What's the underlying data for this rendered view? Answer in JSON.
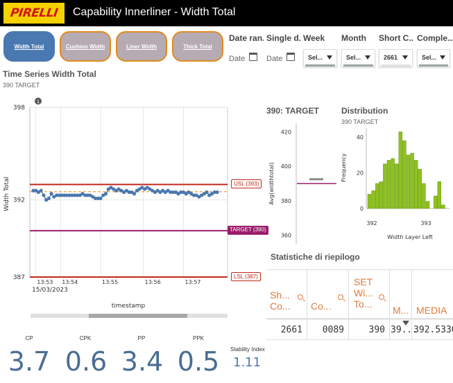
{
  "header": {
    "logo_text": "PIRELLI",
    "title": "Capability Innerliner - Width Total"
  },
  "nav": [
    {
      "label": "Width Total",
      "active": true
    },
    {
      "label": "Cushion Width",
      "active": false
    },
    {
      "label": "Liner Width",
      "active": false
    },
    {
      "label": "Thick Total",
      "active": false
    }
  ],
  "filters": {
    "date_range": {
      "label": "Date ran...",
      "placeholder": "Date"
    },
    "single_date": {
      "label": "Single d...",
      "placeholder": "Date"
    },
    "week": {
      "label": "Week",
      "value": "Sel..."
    },
    "month": {
      "label": "Month",
      "value": "Sel..."
    },
    "short_code": {
      "label": "Short C...",
      "value": "2661"
    },
    "complete": {
      "label": "Comple...",
      "value": "Sel..."
    }
  },
  "timeseries": {
    "title": "Time Series Width Total",
    "subtitle": "390 TARGET",
    "badge": "1",
    "ylabel": "Width Total",
    "xlabel": "timestamp",
    "date_label": "15/03/2023",
    "y_ticks": [
      "398",
      "392",
      "387"
    ],
    "x_ticks": [
      "13:53",
      "13:54",
      "13:55",
      "13:56",
      "13:57"
    ],
    "usl_label": "USL (393)",
    "target_label": "TARGET (390)",
    "lsl_label": "LSL (387)"
  },
  "chart_data": [
    {
      "type": "line",
      "title": "Time Series Width Total",
      "xlabel": "timestamp",
      "ylabel": "Width Total",
      "ylim": [
        387,
        398
      ],
      "usl": 393,
      "target": 390,
      "lsl": 387,
      "mean": 392.53,
      "x_ticks": [
        "13:53",
        "13:54",
        "13:55",
        "13:56",
        "13:57"
      ],
      "series": [
        {
          "values": [
            392.6,
            392.6,
            392.5,
            392.6,
            392.3,
            392.0,
            392.1,
            392.4,
            392.2,
            392.3,
            392.3,
            392.3,
            392.3,
            392.3,
            392.3,
            392.3,
            392.3,
            392.3,
            392.3,
            392.4,
            392.3,
            392.3,
            392.3,
            392.2,
            392.1,
            392.1,
            392.1,
            392.3,
            392.4,
            392.7,
            392.8,
            392.7,
            392.6,
            392.7,
            392.6,
            392.5,
            392.6,
            392.5,
            392.5,
            392.4,
            392.6,
            392.7,
            392.8,
            392.7,
            392.8,
            392.7,
            392.6,
            392.5,
            392.6,
            392.5,
            392.6,
            392.5,
            392.6,
            392.5,
            392.5,
            392.5,
            392.4,
            392.5,
            392.5,
            392.4,
            392.5,
            392.4,
            392.3,
            392.3,
            392.2,
            392.3,
            392.4,
            392.5,
            392.3,
            392.4,
            392.5,
            392.5
          ]
        }
      ]
    },
    {
      "type": "bar",
      "title": "390: TARGET",
      "ylabel": "Avg(widthtotal)",
      "ylim": [
        355,
        425
      ],
      "y_ticks": [
        420,
        400,
        380,
        360
      ],
      "avg": 392.5,
      "target": 390
    },
    {
      "type": "bar",
      "title": "Distribution",
      "subtitle": "390 TARGET",
      "xlabel": "Width Layer Left",
      "ylabel": "Frequency",
      "ylim": [
        0,
        45
      ],
      "y_ticks": [
        40,
        20,
        0
      ],
      "x_ticks": [
        "392",
        "393"
      ],
      "values": [
        8,
        10,
        14,
        15,
        25,
        27,
        28,
        25,
        43,
        38,
        30,
        31,
        27,
        22,
        14,
        4,
        0,
        7,
        15,
        2
      ]
    }
  ],
  "gauge": {
    "title": "390: TARGET",
    "ylabel": "Avg(widthtotal)",
    "y_ticks": [
      "420",
      "400",
      "380",
      "360"
    ]
  },
  "distribution": {
    "title": "Distribution",
    "subtitle": "390 TARGET",
    "ylabel": "Frequency",
    "xlabel": "Width Layer Left",
    "y_ticks": [
      "40",
      "20",
      "0"
    ],
    "x_ticks": [
      "392",
      "393"
    ]
  },
  "kpis": [
    {
      "label": "CP",
      "value": "3.7"
    },
    {
      "label": "CPK",
      "value": "0.6"
    },
    {
      "label": "PP",
      "value": "3.4"
    },
    {
      "label": "PPK",
      "value": "0.5"
    }
  ],
  "stability": {
    "label": "Stability Index",
    "value": "1.11"
  },
  "summary": {
    "title": "Statistiche di riepilogo",
    "headers": [
      {
        "line1": "Sh...",
        "line2": "Co..."
      },
      {
        "line1": "",
        "line2": "Co..."
      },
      {
        "line0": "SET",
        "line1": "Wi...",
        "line2": "To..."
      },
      {
        "line1": "",
        "line2": "M..."
      },
      {
        "line1": "",
        "line2": "MEDIA"
      }
    ],
    "row": [
      "2661",
      "0089",
      "390",
      "39...",
      "392.5330"
    ]
  },
  "colors": {
    "usl": "#c0281c",
    "lsl": "#c0281c",
    "target": "#9b1b6a",
    "mean": "#e6952c",
    "points": "#4a78b0",
    "histogram": "#8ec11f",
    "kpi": "#4a6d93"
  }
}
